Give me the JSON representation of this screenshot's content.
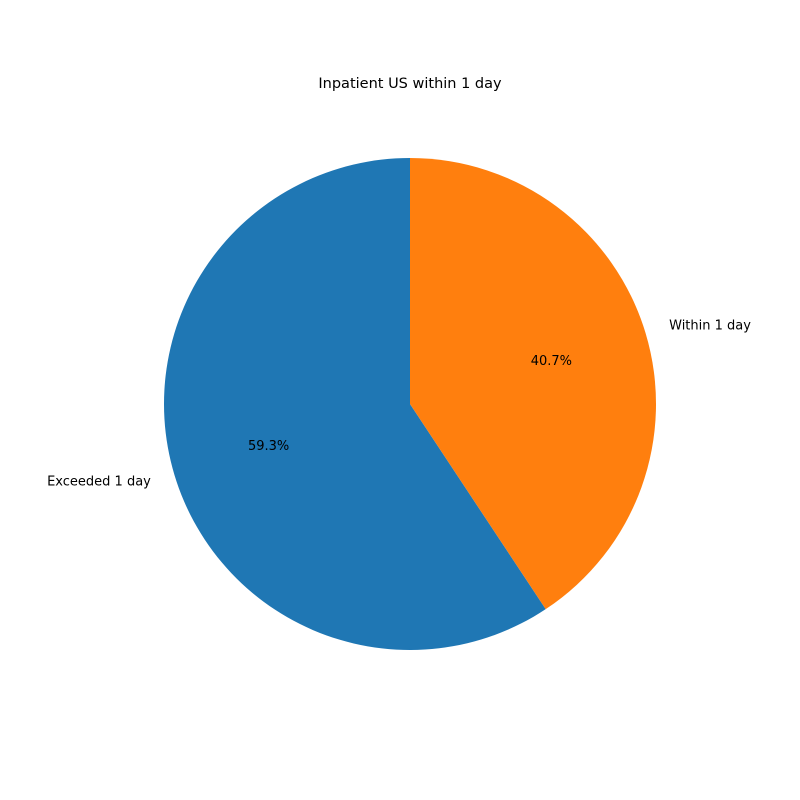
{
  "chart_data": {
    "type": "pie",
    "title": "Inpatient US within 1 day",
    "start_angle_deg": 90,
    "direction": "counterclockwise",
    "slices": [
      {
        "label": "Exceeded 1 day",
        "value": 59.3,
        "pct_label": "59.3%",
        "color": "#1f77b4"
      },
      {
        "label": "Within 1 day",
        "value": 40.7,
        "pct_label": "40.7%",
        "color": "#ff7f0e"
      }
    ]
  }
}
